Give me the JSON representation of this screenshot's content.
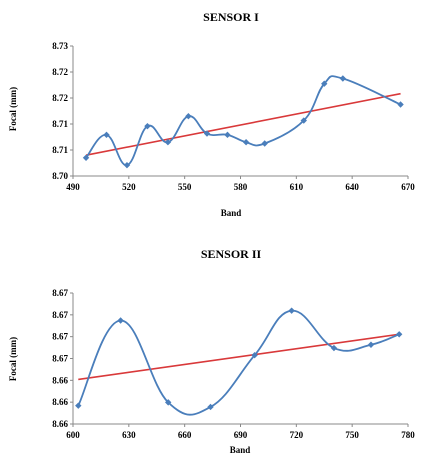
{
  "chart_data": [
    {
      "type": "line",
      "title": "SENSOR I",
      "xlabel": "Band",
      "ylabel": "Focal (mm)",
      "xlim": [
        490,
        670
      ],
      "ylim": [
        8.7,
        8.73
      ],
      "x_ticks": [
        "490",
        "520",
        "550",
        "580",
        "610",
        "640",
        "670"
      ],
      "y_ticks": [
        "8.70",
        "8.71",
        "8.71",
        "8.72",
        "8.72",
        "8.73"
      ],
      "grid": false,
      "legend": "none",
      "series": [
        {
          "style": "smooth line with diamond markers",
          "color": "#4a7ebb",
          "x": [
            497,
            508,
            519,
            530,
            541,
            552,
            562,
            573,
            583,
            593,
            614,
            625,
            635,
            666
          ],
          "y": [
            8.7042,
            8.7095,
            8.7025,
            8.7115,
            8.7078,
            8.7138,
            8.7098,
            8.7095,
            8.7078,
            8.7075,
            8.7128,
            8.7213,
            8.7225,
            8.7165
          ]
        },
        {
          "style": "linear trendline",
          "color": "#d9393a",
          "x": [
            497,
            666
          ],
          "y": [
            8.7048,
            8.719
          ]
        }
      ]
    },
    {
      "type": "line",
      "title": "SENSOR II",
      "xlabel": "Band",
      "ylabel": "Focal (mm)",
      "xlim": [
        600,
        790
      ],
      "ylim": [
        8.6545,
        8.6745
      ],
      "x_ticks": [
        "600",
        "630",
        "660",
        "690",
        "720",
        "750",
        "780"
      ],
      "y_ticks": [
        "8.66",
        "8.66",
        "8.66",
        "8.67",
        "8.67",
        "8.67",
        "8.67"
      ],
      "grid": false,
      "legend": "none",
      "series": [
        {
          "style": "smooth line with diamond markers",
          "color": "#4a7ebb",
          "x": [
            603,
            627,
            654,
            678,
            703,
            724,
            748,
            769,
            785
          ],
          "y": [
            8.6573,
            8.6703,
            8.6578,
            8.6571,
            8.665,
            8.6718,
            8.6661,
            8.6666,
            8.6682
          ]
        },
        {
          "style": "linear trendline",
          "color": "#d9393a",
          "x": [
            603,
            785
          ],
          "y": [
            8.6613,
            8.6682
          ]
        }
      ]
    }
  ]
}
